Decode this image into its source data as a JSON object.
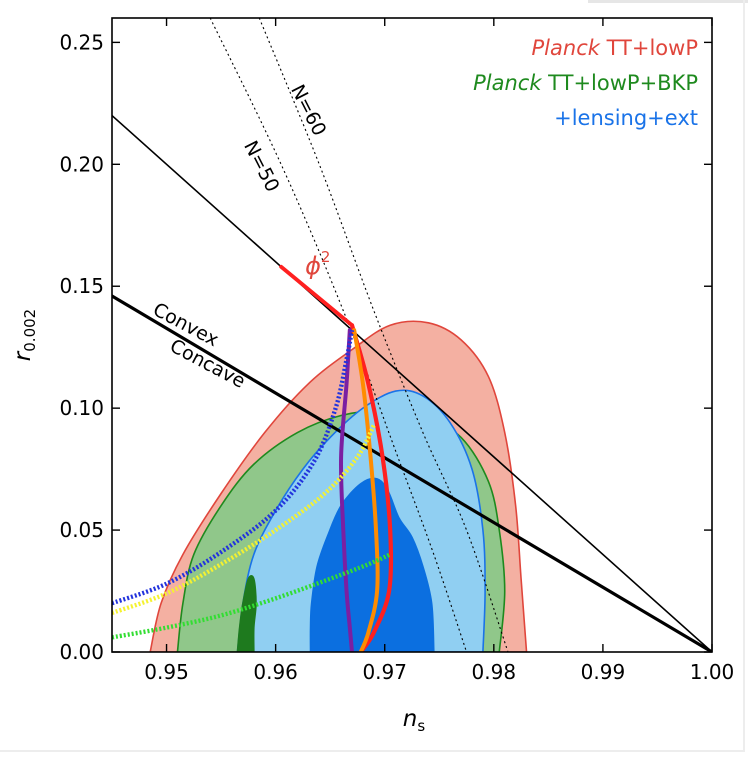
{
  "chart_data": {
    "type": "scatter",
    "xlabel_main": "n",
    "xlabel_sub": "s",
    "ylabel_main": "r",
    "ylabel_sub": "0.002",
    "xlim": [
      0.945,
      1.0
    ],
    "ylim": [
      0.0,
      0.26
    ],
    "xticks": [
      {
        "v": 0.95,
        "label": "0.95"
      },
      {
        "v": 0.96,
        "label": "0.96"
      },
      {
        "v": 0.97,
        "label": "0.97"
      },
      {
        "v": 0.98,
        "label": "0.98"
      },
      {
        "v": 0.99,
        "label": "0.99"
      },
      {
        "v": 1.0,
        "label": "1.00"
      }
    ],
    "yticks": [
      {
        "v": 0.0,
        "label": "0.00"
      },
      {
        "v": 0.05,
        "label": "0.05"
      },
      {
        "v": 0.1,
        "label": "0.10"
      },
      {
        "v": 0.15,
        "label": "0.15"
      },
      {
        "v": 0.2,
        "label": "0.20"
      },
      {
        "v": 0.25,
        "label": "0.25"
      }
    ],
    "grid": false,
    "legend_position": "top-right",
    "legend": [
      {
        "italic": "Planck",
        "rest": " TT+lowP",
        "color": "#e0463c"
      },
      {
        "italic": "Planck",
        "rest": " TT+lowP+BKP",
        "color": "#1e8a1e"
      },
      {
        "italic": "",
        "rest": "+lensing+ext",
        "color": "#1a73e8"
      }
    ],
    "contours": [
      {
        "name": "Planck TT+lowP 95%",
        "fill": "#f4b0a2",
        "stroke": "#e0463c",
        "points": [
          [
            0.9485,
            0
          ],
          [
            0.9495,
            0.02
          ],
          [
            0.9515,
            0.04
          ],
          [
            0.955,
            0.065
          ],
          [
            0.959,
            0.09
          ],
          [
            0.963,
            0.11
          ],
          [
            0.967,
            0.124
          ],
          [
            0.9705,
            0.134
          ],
          [
            0.974,
            0.135
          ],
          [
            0.977,
            0.128
          ],
          [
            0.9795,
            0.113
          ],
          [
            0.981,
            0.09
          ],
          [
            0.982,
            0.06
          ],
          [
            0.9825,
            0.03
          ],
          [
            0.983,
            0
          ]
        ]
      },
      {
        "name": "Planck TT+lowP+BKP 95%",
        "fill": "#90c78a",
        "stroke": "#1e8a1e",
        "points": [
          [
            0.951,
            0
          ],
          [
            0.9515,
            0.02
          ],
          [
            0.9525,
            0.04
          ],
          [
            0.955,
            0.06
          ],
          [
            0.958,
            0.077
          ],
          [
            0.962,
            0.09
          ],
          [
            0.966,
            0.097
          ],
          [
            0.97,
            0.099
          ],
          [
            0.9735,
            0.097
          ],
          [
            0.977,
            0.088
          ],
          [
            0.9795,
            0.07
          ],
          [
            0.9805,
            0.05
          ],
          [
            0.981,
            0.025
          ],
          [
            0.9805,
            0
          ]
        ]
      },
      {
        "name": "+lensing+ext 95%",
        "fill": "#90cff2",
        "stroke": "#1a73e8",
        "points": [
          [
            0.9565,
            0
          ],
          [
            0.957,
            0.02
          ],
          [
            0.958,
            0.04
          ],
          [
            0.96,
            0.058
          ],
          [
            0.9625,
            0.075
          ],
          [
            0.965,
            0.088
          ],
          [
            0.968,
            0.1
          ],
          [
            0.971,
            0.107
          ],
          [
            0.9735,
            0.105
          ],
          [
            0.976,
            0.094
          ],
          [
            0.978,
            0.075
          ],
          [
            0.979,
            0.05
          ],
          [
            0.9792,
            0.025
          ],
          [
            0.979,
            0
          ]
        ]
      },
      {
        "name": "Planck TT+lowP+BKP 68%",
        "fill": "#1e7a1e",
        "stroke": "#1e7a1e",
        "points": [
          [
            0.9565,
            0
          ],
          [
            0.9567,
            0.01
          ],
          [
            0.957,
            0.02
          ],
          [
            0.9575,
            0.03
          ],
          [
            0.958,
            0.03
          ],
          [
            0.9582,
            0.02
          ],
          [
            0.958,
            0.01
          ],
          [
            0.958,
            0
          ]
        ]
      },
      {
        "name": "+lensing+ext 68%",
        "fill": "#0b6fe0",
        "stroke": "#0b6fe0",
        "points": [
          [
            0.9632,
            0
          ],
          [
            0.9632,
            0.01
          ],
          [
            0.9633,
            0.02
          ],
          [
            0.9638,
            0.035
          ],
          [
            0.9648,
            0.048
          ],
          [
            0.966,
            0.06
          ],
          [
            0.9678,
            0.069
          ],
          [
            0.9693,
            0.071
          ],
          [
            0.9703,
            0.066
          ],
          [
            0.9713,
            0.055
          ],
          [
            0.9725,
            0.047
          ],
          [
            0.9735,
            0.035
          ],
          [
            0.9743,
            0.02
          ],
          [
            0.9745,
            0
          ]
        ]
      }
    ],
    "lines": [
      {
        "name": "Convex/Concave boundary",
        "color": "#000000",
        "width": 3.2,
        "dash": "",
        "points": [
          [
            0.945,
            0.146
          ],
          [
            1.0,
            0
          ]
        ]
      },
      {
        "name": "phi^2 extension",
        "color": "#000000",
        "width": 1.6,
        "dash": "",
        "points": [
          [
            0.945,
            0.22
          ],
          [
            1.0,
            0
          ]
        ]
      },
      {
        "name": "N=50",
        "color": "#000000",
        "width": 1.1,
        "dash": "2,3",
        "points": [
          [
            0.954,
            0.26
          ],
          [
            0.9605,
            0.2
          ],
          [
            0.9662,
            0.14
          ],
          [
            0.9712,
            0.08
          ],
          [
            0.9745,
            0.04
          ],
          [
            0.9775,
            0.0
          ]
        ]
      },
      {
        "name": "N=60",
        "color": "#000000",
        "width": 1.1,
        "dash": "2,3",
        "points": [
          [
            0.9585,
            0.26
          ],
          [
            0.964,
            0.2
          ],
          [
            0.969,
            0.14
          ],
          [
            0.9735,
            0.09
          ],
          [
            0.9775,
            0.05
          ],
          [
            0.9813,
            0.0
          ]
        ]
      },
      {
        "name": "phi^2 segment",
        "color": "#ff2020",
        "width": 3.8,
        "dash": "",
        "points": [
          [
            0.9605,
            0.158
          ],
          [
            0.967,
            0.134
          ]
        ]
      },
      {
        "name": "red model",
        "color": "#ff2020",
        "width": 4.2,
        "dash": "",
        "points": [
          [
            0.967,
            0.134
          ],
          [
            0.9685,
            0.11
          ],
          [
            0.9698,
            0.08
          ],
          [
            0.9705,
            0.05
          ],
          [
            0.9704,
            0.025
          ],
          [
            0.969,
            0.008
          ],
          [
            0.9678,
            0.0
          ]
        ]
      },
      {
        "name": "orange model",
        "color": "#ff8c00",
        "width": 4.0,
        "dash": "",
        "points": [
          [
            0.9672,
            0.132
          ],
          [
            0.968,
            0.11
          ],
          [
            0.9687,
            0.08
          ],
          [
            0.9692,
            0.05
          ],
          [
            0.9693,
            0.025
          ],
          [
            0.9685,
            0.008
          ],
          [
            0.9678,
            0.0
          ]
        ]
      },
      {
        "name": "purple model",
        "color": "#7b1fa2",
        "width": 4.0,
        "dash": "",
        "points": [
          [
            0.9668,
            0.132
          ],
          [
            0.9665,
            0.11
          ],
          [
            0.966,
            0.08
          ],
          [
            0.9662,
            0.05
          ],
          [
            0.9665,
            0.025
          ],
          [
            0.9668,
            0.01
          ],
          [
            0.967,
            0.0
          ]
        ]
      },
      {
        "name": "blue dotted model",
        "color": "#2233dd",
        "width": 4.4,
        "dash": "2,2",
        "points": [
          [
            0.945,
            0.02
          ],
          [
            0.95,
            0.028
          ],
          [
            0.955,
            0.041
          ],
          [
            0.96,
            0.058
          ],
          [
            0.9635,
            0.078
          ],
          [
            0.9655,
            0.1
          ],
          [
            0.9665,
            0.12
          ],
          [
            0.967,
            0.132
          ]
        ]
      },
      {
        "name": "yellow dotted model",
        "color": "#f5f230",
        "width": 4.4,
        "dash": "2,2",
        "points": [
          [
            0.945,
            0.016
          ],
          [
            0.95,
            0.024
          ],
          [
            0.955,
            0.036
          ],
          [
            0.96,
            0.05
          ],
          [
            0.9645,
            0.065
          ],
          [
            0.9675,
            0.08
          ],
          [
            0.969,
            0.093
          ]
        ]
      },
      {
        "name": "green dotted model",
        "color": "#33dd33",
        "width": 4.4,
        "dash": "2,2",
        "points": [
          [
            0.945,
            0.006
          ],
          [
            0.95,
            0.01
          ],
          [
            0.955,
            0.015
          ],
          [
            0.96,
            0.022
          ],
          [
            0.965,
            0.03
          ],
          [
            0.9685,
            0.036
          ],
          [
            0.9705,
            0.04
          ]
        ]
      }
    ],
    "annotations": [
      {
        "text": "N=60",
        "x": 0.9625,
        "y": 0.221,
        "rotate": 63,
        "color": "#000000",
        "size": 19
      },
      {
        "text": "N=50",
        "x": 0.9582,
        "y": 0.198,
        "rotate": 63,
        "color": "#000000",
        "size": 19
      },
      {
        "text": "Convex",
        "x": 0.9515,
        "y": 0.132,
        "rotate": 28,
        "color": "#000000",
        "size": 19
      },
      {
        "text": "Concave",
        "x": 0.9535,
        "y": 0.116,
        "rotate": 28,
        "color": "#000000",
        "size": 19
      }
    ],
    "phi_label": {
      "text": "ϕ",
      "sup": "2",
      "x": 0.9627,
      "y": 0.155,
      "color": "#e0463c"
    }
  }
}
